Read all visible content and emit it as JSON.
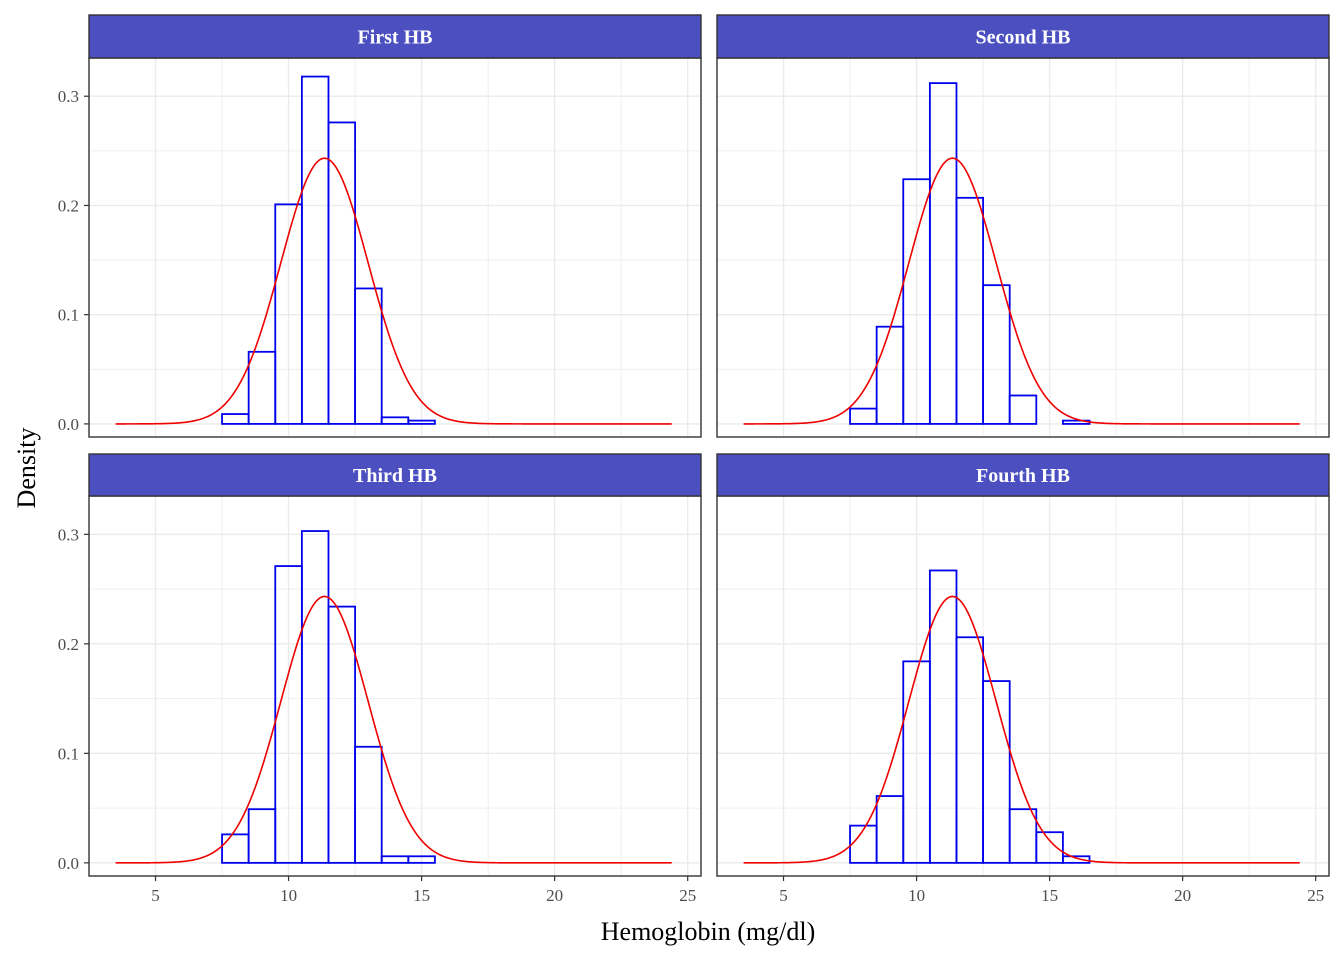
{
  "chart_data": {
    "type": "histogram",
    "xlabel": "Hemoglobin (mg/dl)",
    "ylabel": "Density",
    "xlim": [
      2.5,
      25.5
    ],
    "ylim": [
      -0.012,
      0.335
    ],
    "x_ticks": [
      5,
      10,
      15,
      20,
      25
    ],
    "x_tick_labels": [
      "5",
      "10",
      "15",
      "20",
      "25"
    ],
    "y_ticks": [
      0.0,
      0.1,
      0.2,
      0.3
    ],
    "y_tick_labels": [
      "0.0",
      "0.1",
      "0.2",
      "0.3"
    ],
    "grid": true,
    "colors": {
      "strip_fill": "#4b4fbf",
      "bar_outline": "#0000ee",
      "curve": "#ee0000",
      "grid": "#ebebeb",
      "panel_border": "#333333"
    },
    "normal_curve": {
      "mean": 11.35,
      "sd": 1.64,
      "x_range": [
        3.5,
        24.4
      ]
    },
    "panels": [
      {
        "strip_label": "First HB",
        "bars": [
          {
            "x0": 7.5,
            "x1": 8.5,
            "density": 0.009
          },
          {
            "x0": 8.5,
            "x1": 9.5,
            "density": 0.066
          },
          {
            "x0": 9.5,
            "x1": 10.5,
            "density": 0.201
          },
          {
            "x0": 10.5,
            "x1": 11.5,
            "density": 0.318
          },
          {
            "x0": 11.5,
            "x1": 12.5,
            "density": 0.276
          },
          {
            "x0": 12.5,
            "x1": 13.5,
            "density": 0.124
          },
          {
            "x0": 13.5,
            "x1": 14.5,
            "density": 0.006
          },
          {
            "x0": 14.5,
            "x1": 15.5,
            "density": 0.003
          }
        ]
      },
      {
        "strip_label": "Second HB",
        "bars": [
          {
            "x0": 7.5,
            "x1": 8.5,
            "density": 0.014
          },
          {
            "x0": 8.5,
            "x1": 9.5,
            "density": 0.089
          },
          {
            "x0": 9.5,
            "x1": 10.5,
            "density": 0.224
          },
          {
            "x0": 10.5,
            "x1": 11.5,
            "density": 0.312
          },
          {
            "x0": 11.5,
            "x1": 12.5,
            "density": 0.207
          },
          {
            "x0": 12.5,
            "x1": 13.5,
            "density": 0.127
          },
          {
            "x0": 13.5,
            "x1": 14.5,
            "density": 0.026
          },
          {
            "x0": 15.5,
            "x1": 16.5,
            "density": 0.003
          }
        ]
      },
      {
        "strip_label": "Third HB",
        "bars": [
          {
            "x0": 7.5,
            "x1": 8.5,
            "density": 0.026
          },
          {
            "x0": 8.5,
            "x1": 9.5,
            "density": 0.049
          },
          {
            "x0": 9.5,
            "x1": 10.5,
            "density": 0.271
          },
          {
            "x0": 10.5,
            "x1": 11.5,
            "density": 0.303
          },
          {
            "x0": 11.5,
            "x1": 12.5,
            "density": 0.234
          },
          {
            "x0": 12.5,
            "x1": 13.5,
            "density": 0.106
          },
          {
            "x0": 13.5,
            "x1": 14.5,
            "density": 0.006
          },
          {
            "x0": 14.5,
            "x1": 15.5,
            "density": 0.006
          }
        ]
      },
      {
        "strip_label": "Fourth HB",
        "bars": [
          {
            "x0": 7.5,
            "x1": 8.5,
            "density": 0.034
          },
          {
            "x0": 8.5,
            "x1": 9.5,
            "density": 0.061
          },
          {
            "x0": 9.5,
            "x1": 10.5,
            "density": 0.184
          },
          {
            "x0": 10.5,
            "x1": 11.5,
            "density": 0.267
          },
          {
            "x0": 11.5,
            "x1": 12.5,
            "density": 0.206
          },
          {
            "x0": 12.5,
            "x1": 13.5,
            "density": 0.166
          },
          {
            "x0": 13.5,
            "x1": 14.5,
            "density": 0.049
          },
          {
            "x0": 14.5,
            "x1": 15.5,
            "density": 0.028
          },
          {
            "x0": 15.5,
            "x1": 16.5,
            "density": 0.006
          }
        ]
      }
    ]
  }
}
